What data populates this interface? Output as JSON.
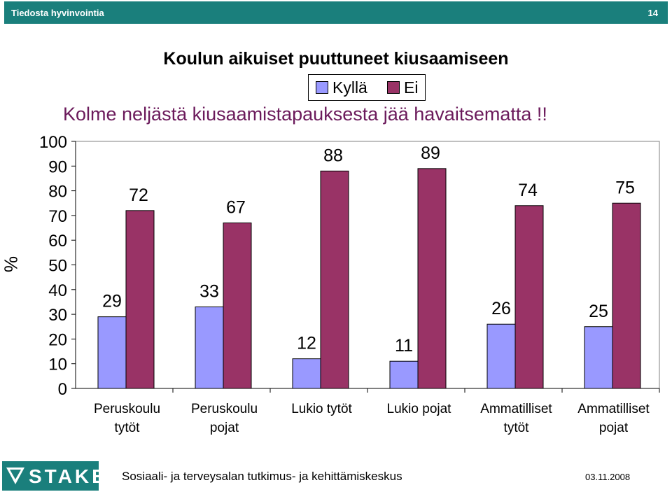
{
  "header": {
    "left": "Tiedosta hyvinvointia",
    "page_number": "14"
  },
  "footer": {
    "institution": "Sosiaali- ja terveysalan tutkimus- ja kehittämiskeskus",
    "date": "03.11.2008",
    "logo_text": "STAKES"
  },
  "colors": {
    "header_bar": "#1a7f7c",
    "kylla": "#9999ff",
    "ei": "#993366",
    "subtitle": "#6b1a5b"
  },
  "chart_data": {
    "type": "bar",
    "title": "Koulun aikuiset puuttuneet kiusaamiseen",
    "subtitle": "Kolme neljästä kiusaamistapauksesta jää havaitsematta !!",
    "ylabel": "%",
    "ylim": [
      0,
      100
    ],
    "yticks": [
      "0",
      "10",
      "20",
      "30",
      "40",
      "50",
      "60",
      "70",
      "80",
      "90",
      "100"
    ],
    "categories": [
      [
        "Peruskoulu",
        "tytöt"
      ],
      [
        "Peruskoulu",
        "pojat"
      ],
      [
        "Lukio tytöt"
      ],
      [
        "Lukio pojat"
      ],
      [
        "Ammatilliset",
        "tytöt"
      ],
      [
        "Ammatilliset",
        "pojat"
      ]
    ],
    "series": [
      {
        "name": "Kyllä",
        "color": "#9999ff",
        "values": [
          29,
          33,
          12,
          11,
          26,
          25
        ]
      },
      {
        "name": "Ei",
        "color": "#993366",
        "values": [
          72,
          67,
          88,
          89,
          74,
          75
        ]
      }
    ],
    "legend_position": "top-center",
    "grid": false
  }
}
